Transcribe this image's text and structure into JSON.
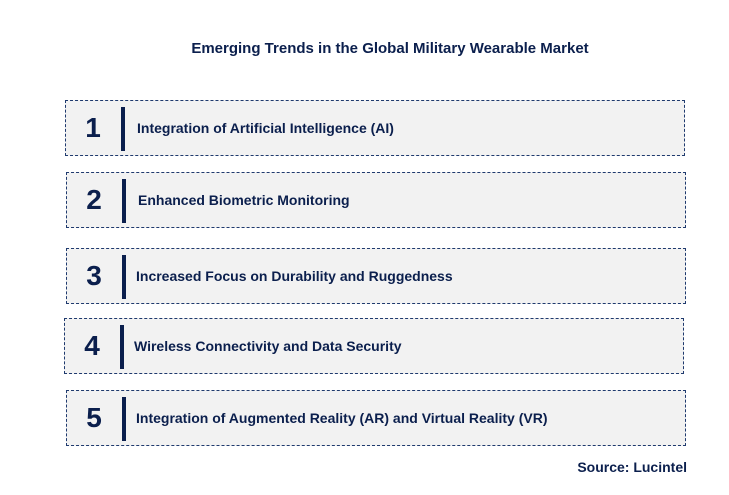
{
  "title": "Emerging Trends in the Global Military Wearable Market",
  "trends": [
    {
      "number": "1",
      "label": "Integration of Artificial  Intelligence (AI)"
    },
    {
      "number": "2",
      "label": "Enhanced Biometric Monitoring"
    },
    {
      "number": "3",
      "label": "Increased Focus on Durability and Ruggedness"
    },
    {
      "number": "4",
      "label": "Wireless Connectivity and Data Security"
    },
    {
      "number": "5",
      "label": "Integration of Augmented Reality (AR) and Virtual Reality (VR)"
    }
  ],
  "source": "Source: Lucintel",
  "colors": {
    "text": "#0b1f4d",
    "box_background": "#f2f2f2",
    "box_border": "#1f3a6e"
  }
}
